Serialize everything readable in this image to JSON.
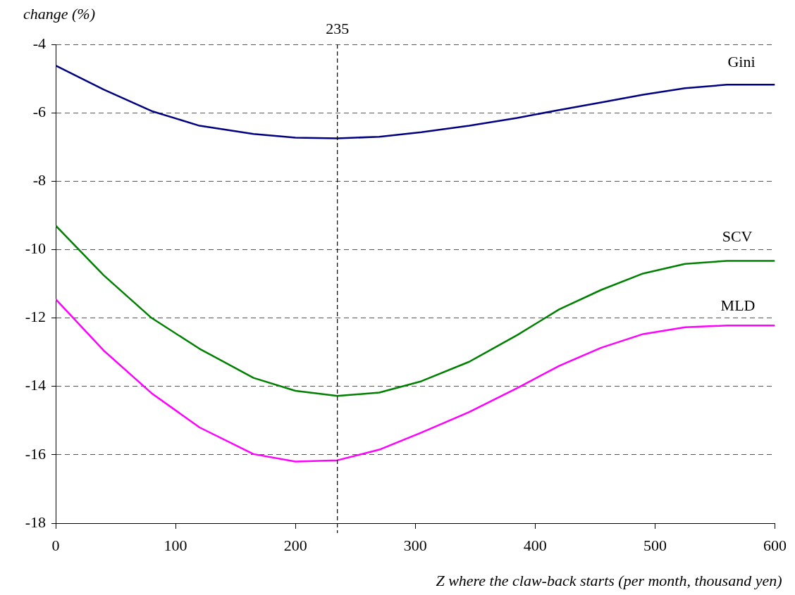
{
  "chart_data": {
    "type": "line",
    "xlabel": "Z where the claw-back starts (per month, thousand yen)",
    "ylabel": "change (%)",
    "x": [
      0,
      40,
      80,
      120,
      165,
      200,
      235,
      270,
      305,
      345,
      385,
      420,
      455,
      490,
      525,
      560,
      600
    ],
    "series": [
      {
        "name": "Gini",
        "color": "#000080",
        "values": [
          -4.62,
          -5.32,
          -5.95,
          -6.38,
          -6.62,
          -6.73,
          -6.75,
          -6.7,
          -6.57,
          -6.38,
          -6.15,
          -5.92,
          -5.7,
          -5.47,
          -5.28,
          -5.18,
          -5.18
        ]
      },
      {
        "name": "SCV",
        "color": "#008000",
        "values": [
          -9.3,
          -10.75,
          -12.0,
          -12.9,
          -13.75,
          -14.13,
          -14.28,
          -14.18,
          -13.85,
          -13.28,
          -12.5,
          -11.75,
          -11.18,
          -10.7,
          -10.42,
          -10.33,
          -10.33
        ]
      },
      {
        "name": "MLD",
        "color": "#ff00ff",
        "values": [
          -11.45,
          -12.95,
          -14.2,
          -15.2,
          -15.98,
          -16.2,
          -16.16,
          -15.85,
          -15.35,
          -14.75,
          -14.05,
          -13.4,
          -12.87,
          -12.47,
          -12.27,
          -12.22,
          -12.22
        ]
      }
    ],
    "xlim": [
      0,
      600
    ],
    "xticks": [
      0,
      100,
      200,
      300,
      400,
      500,
      600
    ],
    "ylim": [
      -18,
      -4
    ],
    "yticks": [
      -18,
      -16,
      -14,
      -12,
      -10,
      -8,
      -6,
      -4
    ],
    "ref_lines": [
      {
        "axis": "x",
        "value": 235,
        "label": "235",
        "line_style": "dashed",
        "color": "#000000"
      }
    ],
    "grid": "y",
    "legend": false,
    "marker": "none",
    "line_style": "solid"
  }
}
